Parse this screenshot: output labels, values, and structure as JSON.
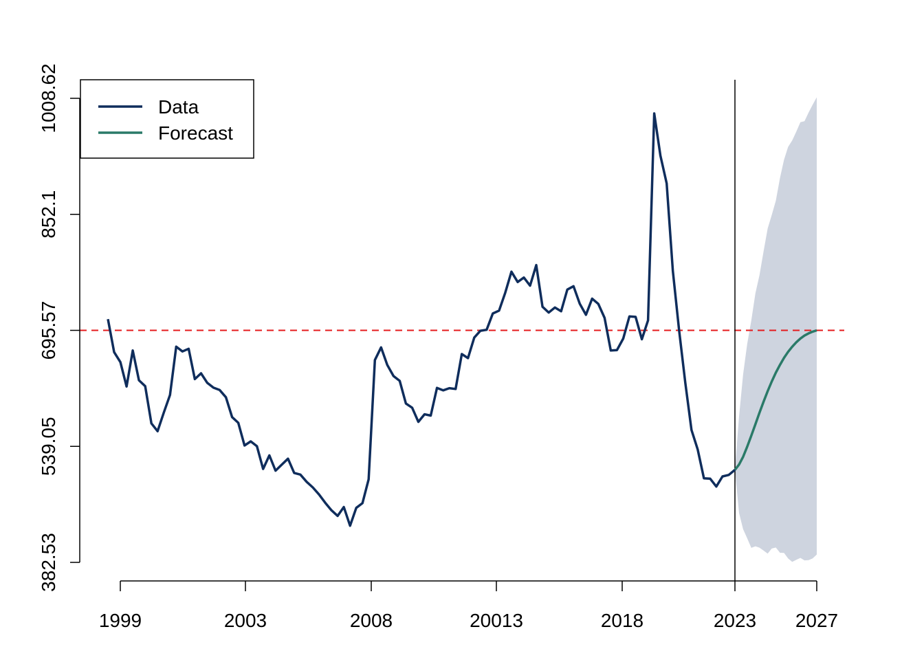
{
  "chart_data": {
    "type": "line",
    "title": "",
    "xlabel": "",
    "ylabel": "",
    "ylim": [
      382.53,
      1008.62
    ],
    "y_ticks": [
      "382.53",
      "539.05",
      "695.57",
      "852.1",
      "1008.62"
    ],
    "x_tick_labels": [
      "1999",
      "2003",
      "2008",
      "20013",
      "2018",
      "2023",
      "2027"
    ],
    "reference_line": {
      "y": 695.57,
      "style": "dashed",
      "color": "#e41a1c"
    },
    "forecast_origin_line": {
      "label": "2023"
    },
    "legend": {
      "position": "top-left",
      "entries": [
        "Data",
        "Forecast"
      ]
    },
    "grid": false,
    "series": [
      {
        "name": "Data",
        "color": "#0f2d5c",
        "values": [
          710.7,
          666.2,
          652.7,
          619.8,
          668.4,
          628.2,
          620.3,
          570.1,
          559.5,
          584.7,
          608.5,
          673.6,
          667.1,
          670.7,
          629.8,
          637.6,
          624.7,
          618.2,
          615.1,
          605.3,
          578.5,
          570.8,
          540.2,
          545.8,
          539.3,
          508.6,
          526.9,
          506.3,
          514.3,
          522.4,
          503.2,
          501.0,
          491.2,
          483.6,
          474.2,
          463.0,
          452.8,
          445.2,
          457.2,
          432.0,
          456.1,
          462.4,
          494.6,
          655.5,
          672.6,
          648.9,
          633.9,
          627.4,
          596.9,
          591.1,
          572.1,
          582.3,
          580.6,
          617.9,
          614.6,
          617.6,
          616.5,
          663.6,
          658.1,
          685.7,
          695.0,
          696.3,
          718.3,
          722.2,
          746.3,
          774.7,
          760.8,
          766.8,
          755.9,
          783.6,
          727.4,
          719.6,
          726.4,
          721.4,
          750.6,
          755.1,
          731.5,
          716.5,
          738.3,
          731.2,
          712.4,
          668.4,
          669.0,
          684.4,
          714.3,
          713.8,
          683.6,
          709.0,
          988.2,
          931.3,
          893.9,
          775.6,
          696.3,
          624.8,
          561.2,
          535.0,
          495.9,
          495.5,
          484.8,
          498.5,
          500.5,
          507.4
        ]
      },
      {
        "name": "Forecast",
        "color": "#2a7a68",
        "x_range": [
          "2023",
          "2027"
        ],
        "values": [
          507.4,
          514.5,
          525.0,
          538.5,
          553.5,
          569.0,
          584.5,
          599.5,
          613.5,
          626.5,
          638.5,
          649.0,
          658.5,
          666.5,
          673.5,
          679.5,
          684.5,
          688.5,
          691.5,
          693.8,
          695.57
        ]
      }
    ],
    "interval": {
      "color": "#ced4df",
      "upper": [
        507.4,
        579.5,
        636.2,
        677.0,
        708.9,
        745.7,
        770.1,
        802.3,
        832.9,
        851.0,
        870.5,
        901.0,
        925.7,
        943.0,
        951.8,
        963.7,
        976.3,
        977.7,
        989.4,
        999.9,
        1010.0
      ],
      "lower": [
        507.4,
        449.1,
        427.2,
        415.1,
        402.1,
        404.2,
        402.4,
        398.4,
        394.4,
        401.2,
        402.6,
        395.5,
        395.2,
        387.9,
        383.2,
        386.0,
        388.6,
        385.2,
        385.6,
        387.9,
        393.1
      ]
    }
  }
}
